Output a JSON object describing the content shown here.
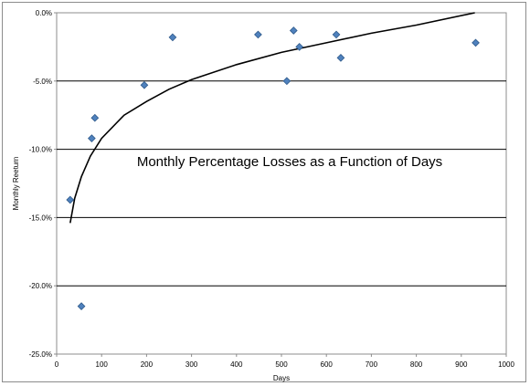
{
  "chart_data": {
    "type": "scatter",
    "title": "Monthly Percentage Losses as a Function of Days",
    "xlabel": "Days",
    "ylabel": "Monthly Reeturn",
    "xlim": [
      0,
      1000
    ],
    "ylim": [
      -25,
      0
    ],
    "x_ticks": [
      "0",
      "100",
      "200",
      "300",
      "400",
      "500",
      "600",
      "700",
      "800",
      "900",
      "1000"
    ],
    "y_ticks": [
      "0.0%",
      "-5.0%",
      "-10.0%",
      "-15.0%",
      "-20.0%",
      "-25.0%"
    ],
    "y_tick_values": [
      0,
      -5,
      -10,
      -15,
      -20,
      -25
    ],
    "x_tick_values": [
      0,
      100,
      200,
      300,
      400,
      500,
      600,
      700,
      800,
      900,
      1000
    ],
    "grid": "horizontal",
    "series": [
      {
        "type": "scatter",
        "color": "#4f81bd",
        "marker": "diamond",
        "points": [
          {
            "x": 30,
            "y": -13.7
          },
          {
            "x": 55,
            "y": -21.5
          },
          {
            "x": 78,
            "y": -9.2
          },
          {
            "x": 85,
            "y": -7.7
          },
          {
            "x": 195,
            "y": -5.3
          },
          {
            "x": 258,
            "y": -1.8
          },
          {
            "x": 448,
            "y": -1.6
          },
          {
            "x": 512,
            "y": -5.0
          },
          {
            "x": 527,
            "y": -1.3
          },
          {
            "x": 540,
            "y": -2.5
          },
          {
            "x": 622,
            "y": -1.6
          },
          {
            "x": 632,
            "y": -3.3
          },
          {
            "x": 932,
            "y": -2.2
          }
        ]
      },
      {
        "type": "line",
        "color": "#000000",
        "trend": "logarithmic",
        "points": [
          {
            "x": 30,
            "y": -15.4
          },
          {
            "x": 40,
            "y": -13.6
          },
          {
            "x": 55,
            "y": -12.0
          },
          {
            "x": 75,
            "y": -10.5
          },
          {
            "x": 100,
            "y": -9.2
          },
          {
            "x": 150,
            "y": -7.5
          },
          {
            "x": 200,
            "y": -6.5
          },
          {
            "x": 250,
            "y": -5.6
          },
          {
            "x": 300,
            "y": -4.9
          },
          {
            "x": 400,
            "y": -3.8
          },
          {
            "x": 500,
            "y": -2.9
          },
          {
            "x": 600,
            "y": -2.2
          },
          {
            "x": 700,
            "y": -1.5
          },
          {
            "x": 800,
            "y": -0.9
          },
          {
            "x": 930,
            "y": 0.0
          }
        ]
      }
    ],
    "style": {
      "gridline_color": "#000000",
      "plot_border_color": "#8c8c8c",
      "marker_fill": "#4f81bd",
      "marker_stroke": "#2f5a8a",
      "trend_color": "#000000"
    }
  }
}
